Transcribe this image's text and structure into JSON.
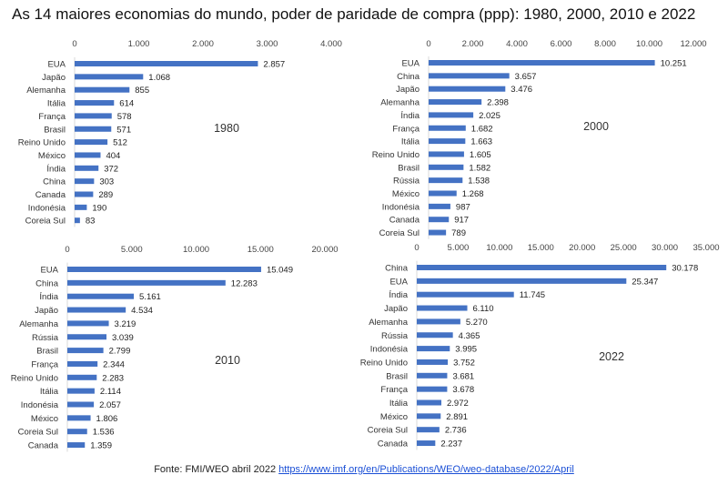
{
  "title": "As 14 maiores economias do mundo, poder de paridade de compra (ppp): 1980, 2000, 2010 e 2022",
  "source": {
    "prefix": "Fonte: FMI/WEO abril 2022 ",
    "link_text": "https://www.imf.org/en/Publications/WEO/weo-database/2022/April"
  },
  "colors": {
    "bar": "#4472c4"
  },
  "chart_data": [
    {
      "type": "bar",
      "orientation": "horizontal",
      "title": "1980",
      "ticks": [
        "0",
        "1.000",
        "2.000",
        "3.000",
        "4.000"
      ],
      "tick_values": [
        0,
        1000,
        2000,
        3000,
        4000
      ],
      "xlim": [
        0,
        4000
      ],
      "categories": [
        "EUA",
        "Japão",
        "Alemanha",
        "Itália",
        "França",
        "Brasil",
        "Reino Unido",
        "México",
        "Índia",
        "China",
        "Canada",
        "Indonésia",
        "Coreia Sul"
      ],
      "values": [
        2857,
        1068,
        855,
        614,
        578,
        571,
        512,
        404,
        372,
        303,
        289,
        190,
        83
      ],
      "labels": [
        "2.857",
        "1.068",
        "855",
        "614",
        "578",
        "571",
        "512",
        "404",
        "372",
        "303",
        "289",
        "190",
        "83"
      ],
      "grid": false
    },
    {
      "type": "bar",
      "orientation": "horizontal",
      "title": "2000",
      "ticks": [
        "0",
        "2.000",
        "4.000",
        "6.000",
        "8.000",
        "10.000",
        "12.000"
      ],
      "tick_values": [
        0,
        2000,
        4000,
        6000,
        8000,
        10000,
        12000
      ],
      "xlim": [
        0,
        12000
      ],
      "categories": [
        "EUA",
        "China",
        "Japão",
        "Alemanha",
        "Índia",
        "França",
        "Itália",
        "Reino Unido",
        "Brasil",
        "Rússia",
        "México",
        "Indonésia",
        "Canada",
        "Coreia Sul"
      ],
      "values": [
        10251,
        3657,
        3476,
        2398,
        2025,
        1682,
        1663,
        1605,
        1582,
        1538,
        1268,
        987,
        917,
        789
      ],
      "labels": [
        "10.251",
        "3.657",
        "3.476",
        "2.398",
        "2.025",
        "1.682",
        "1.663",
        "1.605",
        "1.582",
        "1.538",
        "1.268",
        "987",
        "917",
        "789"
      ],
      "grid": false
    },
    {
      "type": "bar",
      "orientation": "horizontal",
      "title": "2010",
      "ticks": [
        "0",
        "5.000",
        "10.000",
        "15.000",
        "20.000"
      ],
      "tick_values": [
        0,
        5000,
        10000,
        15000,
        20000
      ],
      "xlim": [
        0,
        20000
      ],
      "categories": [
        "EUA",
        "China",
        "Índia",
        "Japão",
        "Alemanha",
        "Rússia",
        "Brasil",
        "França",
        "Reino Unido",
        "Itália",
        "Indonésia",
        "México",
        "Coreia Sul",
        "Canada"
      ],
      "values": [
        15049,
        12283,
        5161,
        4534,
        3219,
        3039,
        2799,
        2344,
        2283,
        2114,
        2057,
        1806,
        1536,
        1359
      ],
      "labels": [
        "15.049",
        "12.283",
        "5.161",
        "4.534",
        "3.219",
        "3.039",
        "2.799",
        "2.344",
        "2.283",
        "2.114",
        "2.057",
        "1.806",
        "1.536",
        "1.359"
      ],
      "grid": false
    },
    {
      "type": "bar",
      "orientation": "horizontal",
      "title": "2022",
      "ticks": [
        "0",
        "5.000",
        "10.000",
        "15.000",
        "20.000",
        "25.000",
        "30.000",
        "35.000"
      ],
      "tick_values": [
        0,
        5000,
        10000,
        15000,
        20000,
        25000,
        30000,
        35000
      ],
      "xlim": [
        0,
        35000
      ],
      "categories": [
        "China",
        "EUA",
        "Índia",
        "Japão",
        "Alemanha",
        "Rússia",
        "Indonésia",
        "Reino Unido",
        "Brasil",
        "França",
        "Itália",
        "México",
        "Coreia Sul",
        "Canada"
      ],
      "values": [
        30178,
        25347,
        11745,
        6110,
        5270,
        4365,
        3995,
        3752,
        3681,
        3678,
        2972,
        2891,
        2736,
        2237
      ],
      "labels": [
        "30.178",
        "25.347",
        "11.745",
        "6.110",
        "5.270",
        "4.365",
        "3.995",
        "3.752",
        "3.681",
        "3.678",
        "2.972",
        "2.891",
        "2.736",
        "2.237"
      ],
      "grid": false
    }
  ]
}
